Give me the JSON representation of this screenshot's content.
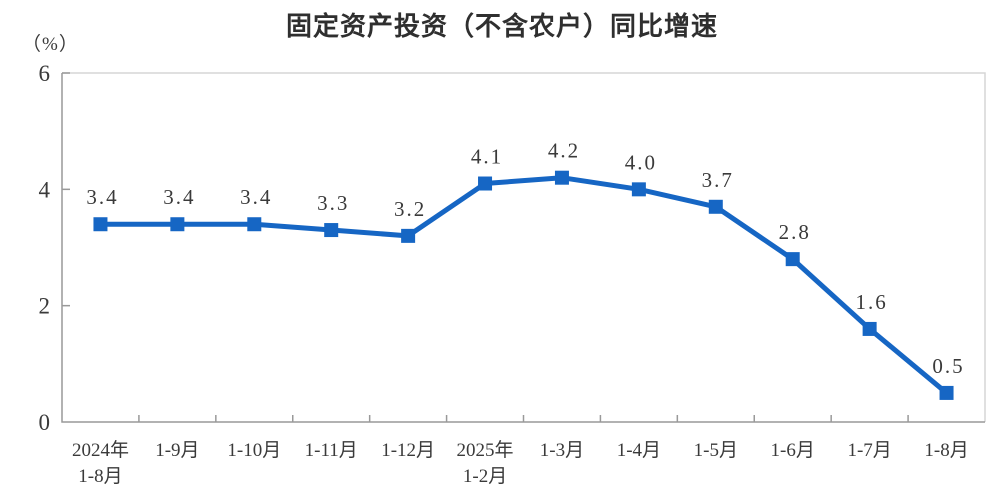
{
  "chart_data": {
    "type": "line",
    "title": "固定资产投资（不含农户）同比增速",
    "unit_label": "（%）",
    "categories": [
      "2024年\n1-8月",
      "1-9月",
      "1-10月",
      "1-11月",
      "1-12月",
      "2025年\n1-2月",
      "1-3月",
      "1-4月",
      "1-5月",
      "1-6月",
      "1-7月",
      "1-8月"
    ],
    "values": [
      3.4,
      3.4,
      3.4,
      3.3,
      3.2,
      4.1,
      4.2,
      4.0,
      3.7,
      2.8,
      1.6,
      0.5
    ],
    "labels": [
      "3.4",
      "3.4",
      "3.4",
      "3.3",
      "3.2",
      "4.1",
      "4.2",
      "4.0",
      "3.7",
      "2.8",
      "1.6",
      "0.5"
    ],
    "xlabel": "",
    "ylabel": "（%）",
    "ylim": [
      0,
      6
    ],
    "yticks": [
      0,
      2,
      4,
      6
    ],
    "grid": false,
    "legend": "none",
    "marker": "square",
    "colors": {
      "line": "#1666C4",
      "marker": "#1666C4",
      "axis": "#999999",
      "border": "#d6d6d6",
      "text": "#3a3a3a",
      "title": "#2f2f2f"
    }
  }
}
